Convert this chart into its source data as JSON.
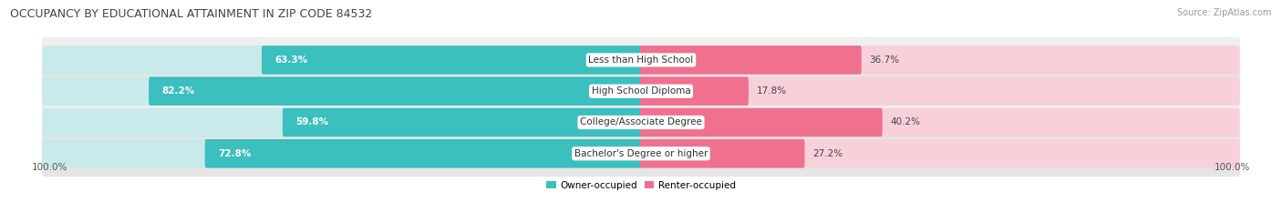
{
  "title": "OCCUPANCY BY EDUCATIONAL ATTAINMENT IN ZIP CODE 84532",
  "source": "Source: ZipAtlas.com",
  "categories": [
    "Less than High School",
    "High School Diploma",
    "College/Associate Degree",
    "Bachelor's Degree or higher"
  ],
  "owner_values": [
    63.3,
    82.2,
    59.8,
    72.8
  ],
  "renter_values": [
    36.7,
    17.8,
    40.2,
    27.2
  ],
  "owner_color": "#3BBFBF",
  "renter_color": "#F07090",
  "owner_light_color": "#C8EAEA",
  "renter_light_color": "#F8D0DA",
  "row_bg_color_odd": "#EFEFEF",
  "row_bg_color_even": "#E5E5E5",
  "title_fontsize": 9,
  "label_fontsize": 7.5,
  "value_fontsize": 7.5,
  "legend_fontsize": 7.5,
  "source_fontsize": 7,
  "background_color": "#FFFFFF",
  "axis_label_left": "100.0%",
  "axis_label_right": "100.0%",
  "owner_label": "Owner-occupied",
  "renter_label": "Renter-occupied"
}
